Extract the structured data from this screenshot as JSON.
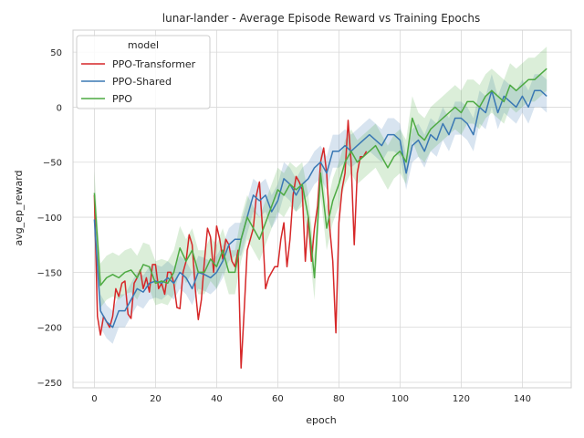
{
  "chart_data": {
    "type": "line",
    "title": "lunar-lander - Average Episode Reward vs Training Epochs",
    "xlabel": "epoch",
    "ylabel": "avg_ep_reward",
    "xlim": [
      -7,
      156
    ],
    "ylim": [
      -255,
      70
    ],
    "xticks": [
      "0",
      "20",
      "40",
      "60",
      "80",
      "100",
      "120",
      "140"
    ],
    "xtick_values": [
      0,
      20,
      40,
      60,
      80,
      100,
      120,
      140
    ],
    "yticks": [
      "50",
      "0",
      "−50",
      "−100",
      "−150",
      "−200",
      "−250"
    ],
    "ytick_values": [
      50,
      0,
      -50,
      -100,
      -150,
      -200,
      -250
    ],
    "grid": true,
    "legend": {
      "title": "model",
      "placement": "top-left"
    },
    "series": [
      {
        "name": "PPO-Transformer",
        "color": "#d62728",
        "x": [
          0,
          1,
          2,
          3,
          4,
          5,
          6,
          7,
          8,
          9,
          10,
          11,
          12,
          13,
          14,
          15,
          16,
          17,
          18,
          19,
          20,
          21,
          22,
          23,
          24,
          25,
          26,
          27,
          28,
          29,
          30,
          31,
          32,
          33,
          34,
          35,
          36,
          37,
          38,
          39,
          40,
          41,
          42,
          43,
          44,
          45,
          46,
          47,
          48,
          49,
          50,
          51,
          52,
          53,
          54,
          55,
          56,
          57,
          58,
          59,
          60,
          61,
          62,
          63,
          64,
          65,
          66,
          67,
          68,
          69,
          70,
          71,
          72,
          73,
          74,
          75,
          76,
          77,
          78,
          79,
          80,
          81,
          82,
          83,
          84,
          85,
          86,
          87,
          88,
          89
        ],
        "values": [
          -80,
          -190,
          -207,
          -190,
          -195,
          -200,
          -190,
          -165,
          -172,
          -160,
          -158,
          -188,
          -192,
          -160,
          -155,
          -148,
          -165,
          -155,
          -168,
          -143,
          -143,
          -165,
          -160,
          -170,
          -150,
          -150,
          -160,
          -182,
          -183,
          -150,
          -140,
          -116,
          -125,
          -165,
          -193,
          -175,
          -140,
          -110,
          -118,
          -150,
          -108,
          -120,
          -138,
          -120,
          -125,
          -140,
          -145,
          -130,
          -237,
          -185,
          -130,
          -120,
          -110,
          -80,
          -68,
          -110,
          -165,
          -155,
          -150,
          -145,
          -145,
          -120,
          -105,
          -145,
          -120,
          -80,
          -63,
          -68,
          -75,
          -140,
          -100,
          -140,
          -110,
          -90,
          -50,
          -37,
          -60,
          -110,
          -140,
          -205,
          -105,
          -75,
          -60,
          -12,
          -50,
          -125,
          -60,
          -45,
          -45,
          -40
        ],
        "band": []
      },
      {
        "name": "PPO-Shared",
        "color": "#3a78b4",
        "x": [
          0,
          2,
          4,
          6,
          8,
          10,
          12,
          14,
          16,
          18,
          20,
          22,
          24,
          26,
          28,
          30,
          32,
          34,
          36,
          38,
          40,
          42,
          44,
          46,
          48,
          50,
          52,
          54,
          56,
          58,
          60,
          62,
          64,
          66,
          68,
          70,
          72,
          74,
          76,
          78,
          80,
          82,
          84,
          86,
          88,
          90,
          92,
          94,
          96,
          98,
          100,
          102,
          104,
          106,
          108,
          110,
          112,
          114,
          116,
          118,
          120,
          122,
          124,
          126,
          128,
          130,
          132,
          134,
          136,
          138,
          140,
          142,
          144,
          146,
          148
        ],
        "values": [
          -102,
          -185,
          -195,
          -200,
          -185,
          -185,
          -175,
          -165,
          -168,
          -160,
          -158,
          -160,
          -155,
          -160,
          -150,
          -155,
          -165,
          -150,
          -152,
          -155,
          -150,
          -140,
          -125,
          -120,
          -120,
          -100,
          -80,
          -85,
          -80,
          -95,
          -85,
          -65,
          -70,
          -80,
          -70,
          -65,
          -55,
          -50,
          -60,
          -40,
          -40,
          -35,
          -40,
          -35,
          -30,
          -25,
          -30,
          -35,
          -25,
          -25,
          -30,
          -60,
          -35,
          -30,
          -40,
          -25,
          -30,
          -15,
          -25,
          -10,
          -10,
          -15,
          -25,
          0,
          -5,
          15,
          -5,
          10,
          5,
          0,
          10,
          0,
          15,
          15,
          10
        ],
        "band": [
          -15,
          15
        ]
      },
      {
        "name": "PPO",
        "color": "#4daa42",
        "x": [
          0,
          2,
          4,
          6,
          8,
          10,
          12,
          14,
          16,
          18,
          20,
          22,
          24,
          26,
          28,
          30,
          32,
          34,
          36,
          38,
          40,
          42,
          44,
          46,
          48,
          50,
          52,
          54,
          56,
          58,
          60,
          62,
          64,
          66,
          68,
          70,
          72,
          74,
          76,
          78,
          80,
          82,
          84,
          86,
          88,
          90,
          92,
          94,
          96,
          98,
          100,
          102,
          104,
          106,
          108,
          110,
          112,
          114,
          116,
          118,
          120,
          122,
          124,
          126,
          128,
          130,
          132,
          134,
          136,
          138,
          140,
          142,
          144,
          146,
          148
        ],
        "values": [
          -78,
          -162,
          -155,
          -152,
          -155,
          -150,
          -148,
          -155,
          -143,
          -145,
          -160,
          -158,
          -160,
          -150,
          -128,
          -140,
          -130,
          -150,
          -150,
          -138,
          -145,
          -130,
          -150,
          -150,
          -120,
          -100,
          -110,
          -120,
          -105,
          -90,
          -75,
          -80,
          -70,
          -75,
          -70,
          -100,
          -155,
          -60,
          -110,
          -85,
          -70,
          -50,
          -40,
          -50,
          -45,
          -40,
          -35,
          -45,
          -55,
          -45,
          -40,
          -50,
          -10,
          -25,
          -30,
          -20,
          -15,
          -10,
          -5,
          0,
          -5,
          5,
          5,
          0,
          10,
          15,
          10,
          5,
          20,
          15,
          20,
          25,
          25,
          30,
          35
        ],
        "band": [
          -20,
          20
        ]
      }
    ]
  }
}
